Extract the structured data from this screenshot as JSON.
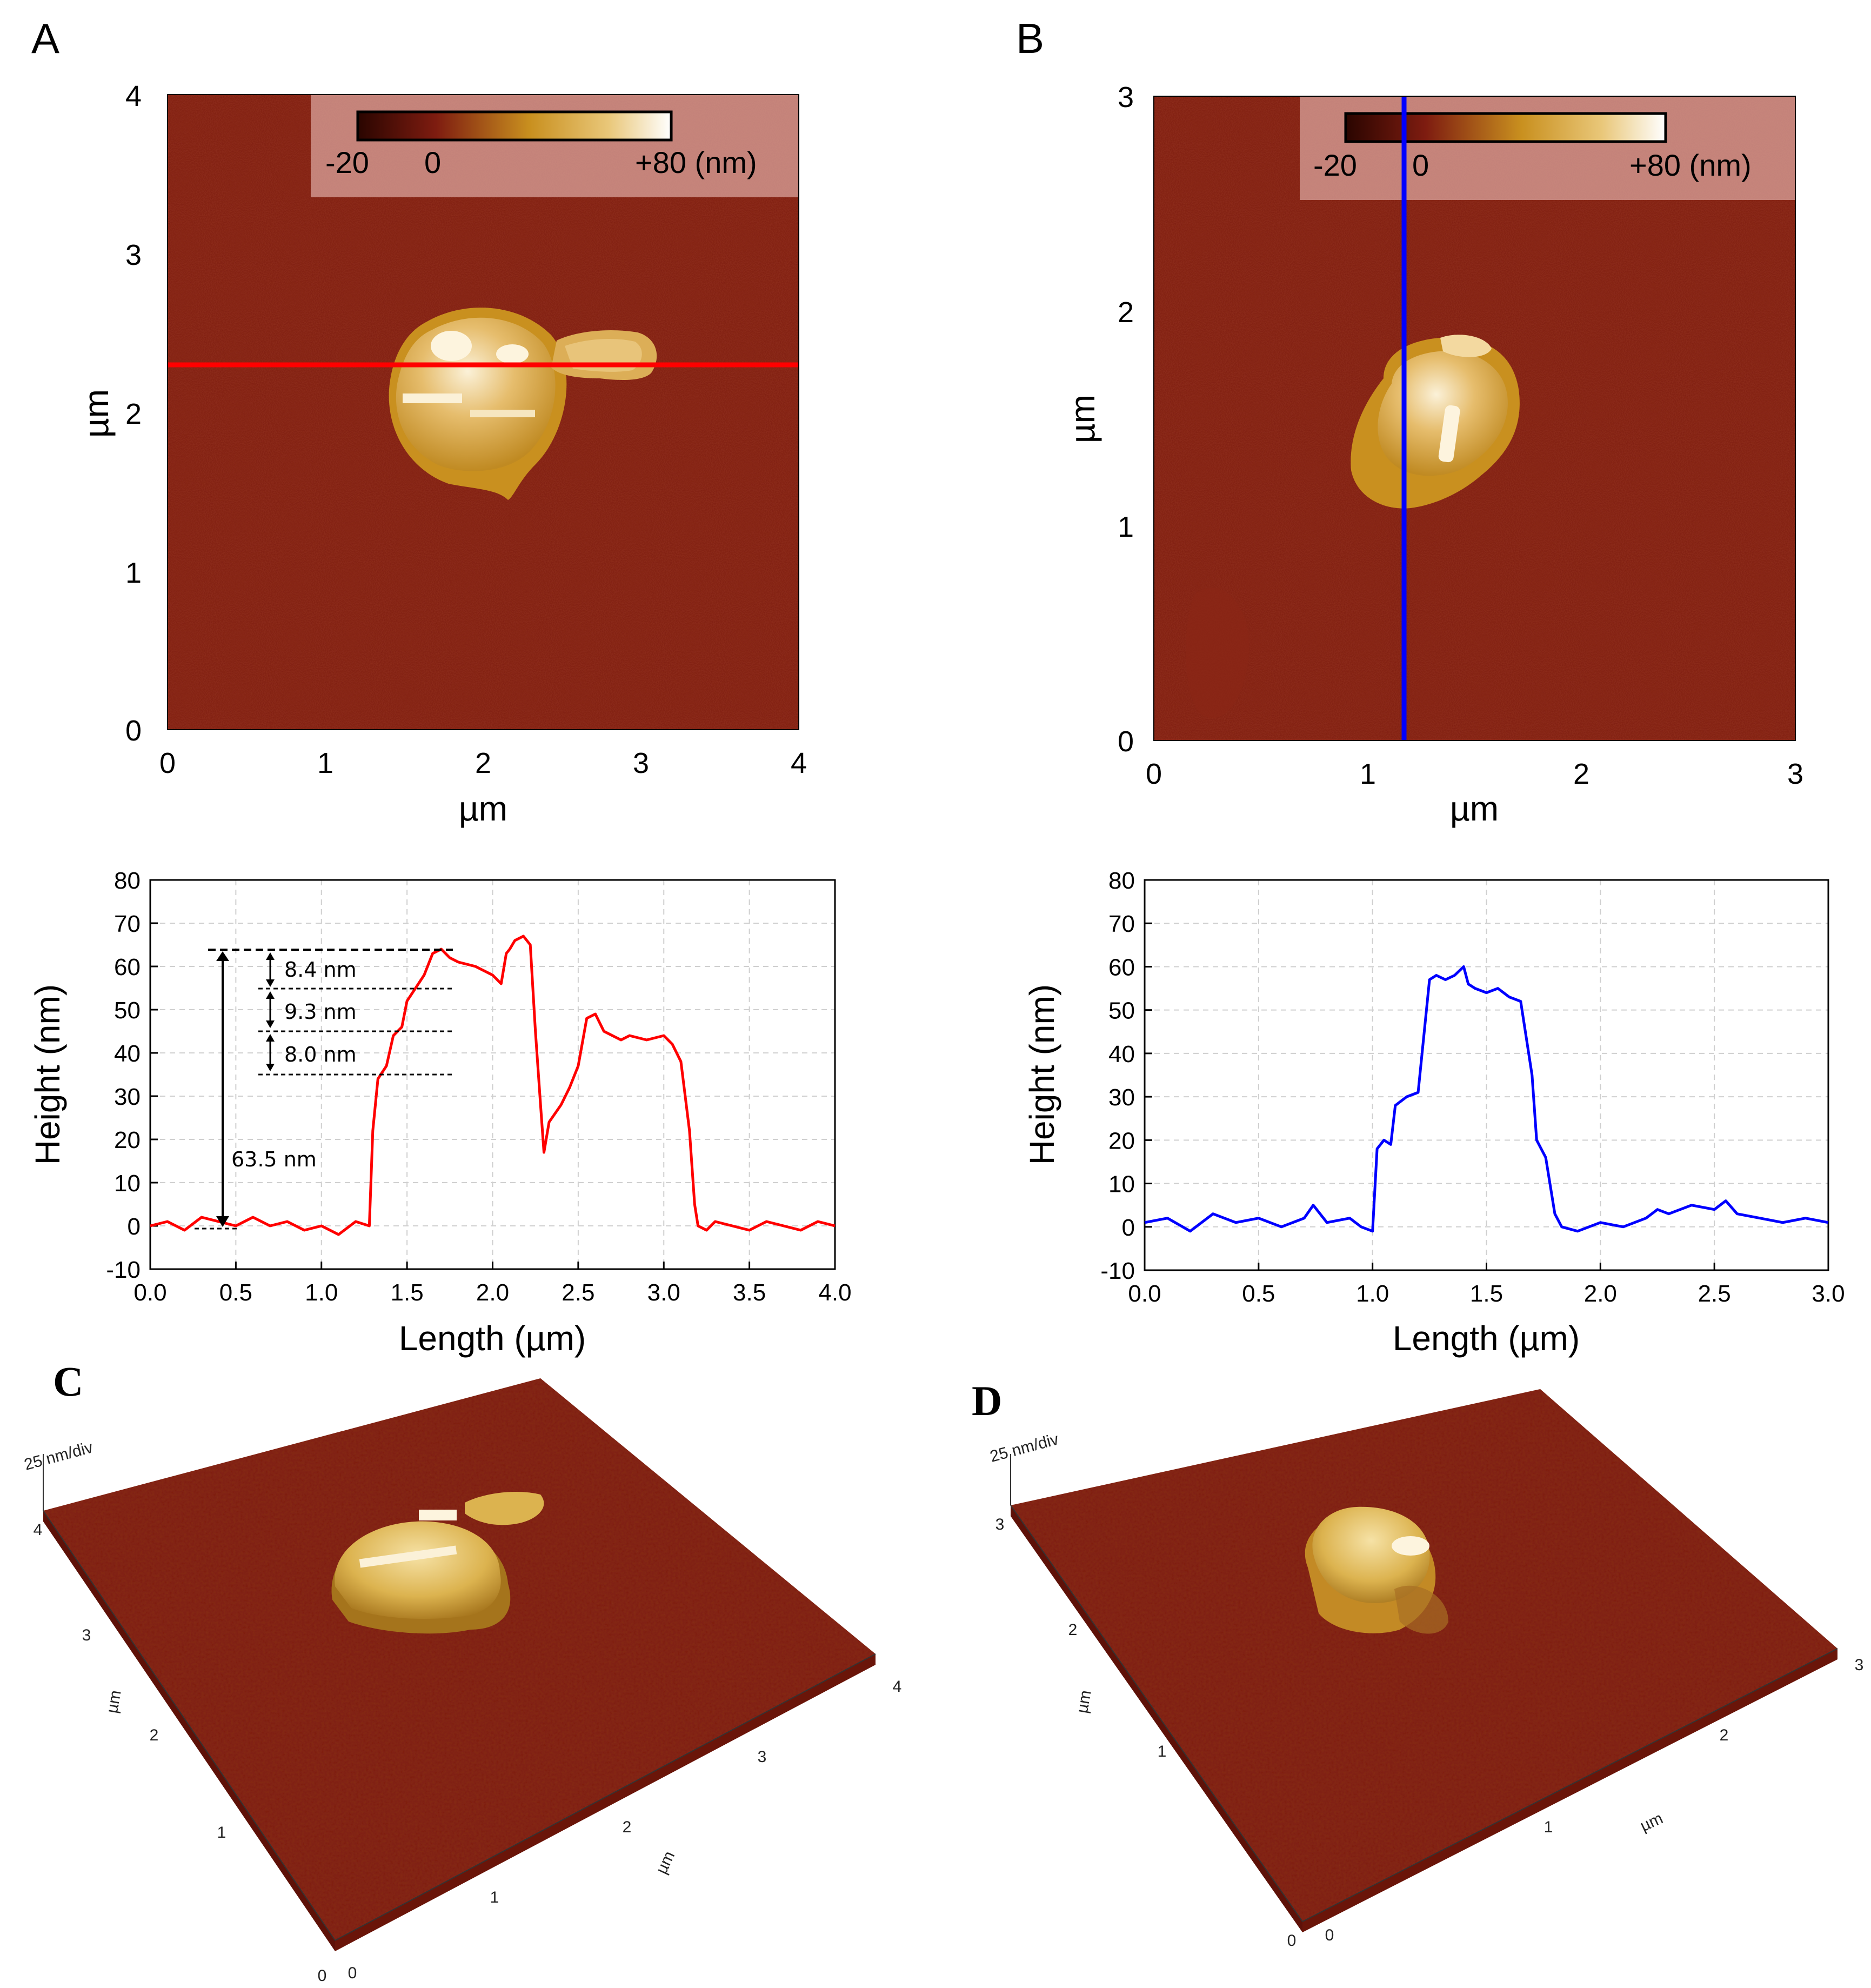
{
  "colors": {
    "substrate": "#7e1c10",
    "substrate_dark": "#5e1108",
    "particle_low": "#c9901f",
    "particle_mid": "#e3b765",
    "particle_high": "#fbf1d8",
    "profile_A": "#ff0000",
    "profile_B": "#0000ff",
    "colorbar_box": "#e7b7b0"
  },
  "panels": {
    "A": {
      "label": "A"
    },
    "B": {
      "label": "B"
    },
    "C": {
      "label": "C"
    },
    "D": {
      "label": "D"
    }
  },
  "colorbar": {
    "ticks": [
      "-20",
      "0",
      "+80 (nm)"
    ]
  },
  "chart_data": [
    {
      "id": "afm_A",
      "type": "heatmap",
      "title": "A",
      "xlabel": "µm",
      "ylabel": "µm",
      "xlim": [
        0,
        4
      ],
      "ylim": [
        0,
        4
      ],
      "xticks": [
        "0",
        "1",
        "2",
        "3",
        "4"
      ],
      "yticks": [
        "0",
        "1",
        "2",
        "3",
        "4"
      ],
      "colorbar": {
        "min": -20,
        "max": 80,
        "unit": "nm",
        "labels": [
          "-20",
          "0",
          "+80 (nm)"
        ]
      },
      "line_profile": {
        "orientation": "horizontal",
        "y": 2.3,
        "color": "red"
      }
    },
    {
      "id": "afm_B",
      "type": "heatmap",
      "title": "B",
      "xlabel": "µm",
      "ylabel": "µm",
      "xlim": [
        0,
        3
      ],
      "ylim": [
        0,
        3
      ],
      "xticks": [
        "0",
        "1",
        "2",
        "3"
      ],
      "yticks": [
        "0",
        "1",
        "2",
        "3"
      ],
      "colorbar": {
        "min": -20,
        "max": 80,
        "unit": "nm",
        "labels": [
          "-20",
          "0",
          "+80 (nm)"
        ]
      },
      "line_profile": {
        "orientation": "vertical",
        "x": 1.17,
        "color": "blue"
      }
    },
    {
      "id": "profile_A",
      "type": "line",
      "xlabel": "Length (µm)",
      "ylabel": "Height (nm)",
      "xlim": [
        0,
        4
      ],
      "ylim": [
        -10,
        80
      ],
      "xticks": [
        "0.0",
        "0.5",
        "1.0",
        "1.5",
        "2.0",
        "2.5",
        "3.0",
        "3.5",
        "4.0"
      ],
      "yticks": [
        "-10",
        "0",
        "10",
        "20",
        "30",
        "40",
        "50",
        "60",
        "70",
        "80"
      ],
      "grid": true,
      "series": [
        {
          "name": "red profile",
          "x": [
            0.0,
            0.1,
            0.2,
            0.3,
            0.4,
            0.5,
            0.6,
            0.7,
            0.8,
            0.9,
            1.0,
            1.1,
            1.2,
            1.28,
            1.3,
            1.33,
            1.38,
            1.42,
            1.47,
            1.5,
            1.55,
            1.6,
            1.65,
            1.7,
            1.75,
            1.8,
            1.9,
            2.0,
            2.05,
            2.08,
            2.1,
            2.13,
            2.18,
            2.22,
            2.25,
            2.28,
            2.3,
            2.33,
            2.4,
            2.45,
            2.5,
            2.55,
            2.6,
            2.65,
            2.7,
            2.75,
            2.8,
            2.9,
            3.0,
            3.05,
            3.1,
            3.15,
            3.18,
            3.2,
            3.25,
            3.3,
            3.4,
            3.5,
            3.6,
            3.7,
            3.8,
            3.9,
            4.0
          ],
          "y": [
            0,
            1,
            -1,
            2,
            1,
            0,
            2,
            0,
            1,
            -1,
            0,
            -2,
            1,
            0,
            22,
            34,
            37,
            44,
            46,
            52,
            55,
            58,
            63,
            64,
            62,
            61,
            60,
            58,
            56,
            63,
            64,
            66,
            67,
            65,
            45,
            28,
            17,
            24,
            28,
            32,
            37,
            48,
            49,
            45,
            44,
            43,
            44,
            43,
            44,
            42,
            38,
            22,
            5,
            0,
            -1,
            1,
            0,
            -1,
            1,
            0,
            -1,
            1,
            0
          ]
        }
      ],
      "annotations": [
        "8.4 nm",
        "9.3 nm",
        "8.0 nm",
        "63.5 nm"
      ]
    },
    {
      "id": "profile_B",
      "type": "line",
      "xlabel": "Length (µm)",
      "ylabel": "Height (nm)",
      "xlim": [
        0,
        3
      ],
      "ylim": [
        -10,
        80
      ],
      "xticks": [
        "0.0",
        "0.5",
        "1.0",
        "1.5",
        "2.0",
        "2.5",
        "3.0"
      ],
      "yticks": [
        "-10",
        "0",
        "10",
        "20",
        "30",
        "40",
        "50",
        "60",
        "70",
        "80"
      ],
      "grid": true,
      "series": [
        {
          "name": "blue profile",
          "x": [
            0.0,
            0.1,
            0.2,
            0.3,
            0.4,
            0.5,
            0.6,
            0.7,
            0.74,
            0.8,
            0.9,
            0.95,
            1.0,
            1.02,
            1.05,
            1.08,
            1.1,
            1.15,
            1.2,
            1.25,
            1.28,
            1.32,
            1.36,
            1.4,
            1.42,
            1.45,
            1.5,
            1.55,
            1.6,
            1.65,
            1.7,
            1.72,
            1.76,
            1.8,
            1.83,
            1.9,
            2.0,
            2.1,
            2.2,
            2.25,
            2.3,
            2.4,
            2.5,
            2.55,
            2.6,
            2.7,
            2.8,
            2.9,
            3.0
          ],
          "y": [
            1,
            2,
            -1,
            3,
            1,
            2,
            0,
            2,
            5,
            1,
            2,
            0,
            -1,
            18,
            20,
            19,
            28,
            30,
            31,
            57,
            58,
            57,
            58,
            60,
            56,
            55,
            54,
            55,
            53,
            52,
            35,
            20,
            16,
            3,
            0,
            -1,
            1,
            0,
            2,
            4,
            3,
            5,
            4,
            6,
            3,
            2,
            1,
            2,
            1
          ]
        }
      ]
    },
    {
      "id": "afm3d_C",
      "type": "heatmap",
      "title": "C",
      "z_scale": "25 nm/div",
      "axis_label": "µm",
      "x_ticks": [
        "0",
        "1",
        "2",
        "3",
        "4"
      ],
      "y_ticks": [
        "0",
        "1",
        "2",
        "3",
        "4"
      ]
    },
    {
      "id": "afm3d_D",
      "type": "heatmap",
      "title": "D",
      "z_scale": "25 nm/div",
      "axis_label": "µm",
      "x_ticks": [
        "0",
        "1",
        "2",
        "3"
      ],
      "y_ticks": [
        "0",
        "1",
        "2",
        "3"
      ]
    }
  ]
}
